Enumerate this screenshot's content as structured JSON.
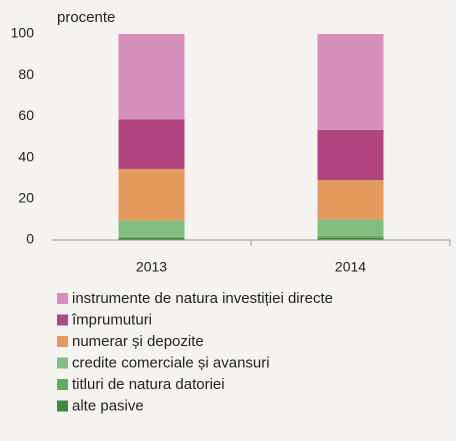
{
  "chart_data": {
    "type": "stacked_bar",
    "y_label": "procente",
    "categories": [
      "2013",
      "2014"
    ],
    "series": [
      {
        "name": "alte pasive",
        "color": "#3e8a3e",
        "values": [
          1,
          1
        ]
      },
      {
        "name": "titluri de natura datoriei",
        "color": "#62ad62",
        "values": [
          0.5,
          1
        ]
      },
      {
        "name": "credite comerciale și avansuri",
        "color": "#84bd80",
        "values": [
          8,
          8
        ]
      },
      {
        "name": "numerar și depozite",
        "color": "#e59a5e",
        "values": [
          25,
          19
        ]
      },
      {
        "name": "împrumuturi",
        "color": "#b0457f",
        "values": [
          24,
          24.5
        ]
      },
      {
        "name": "instrumente de natura investiției directe",
        "color": "#d690bb",
        "values": [
          41.5,
          46.5
        ]
      }
    ],
    "ylim": [
      0,
      100
    ],
    "yticks": [
      0,
      20,
      40,
      60,
      80,
      100
    ]
  }
}
